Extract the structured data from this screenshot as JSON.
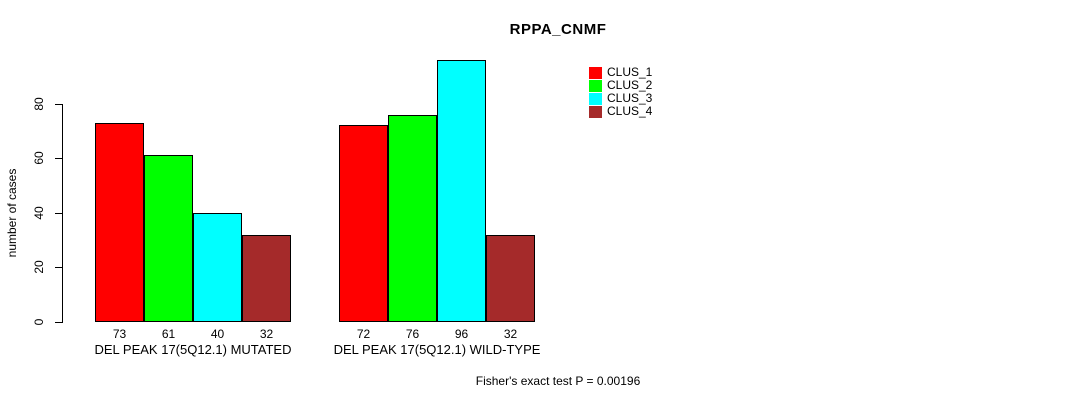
{
  "title": "RPPA_CNMF",
  "y_axis": {
    "label": "number of cases",
    "tick_labels": [
      "0",
      "20",
      "40",
      "60",
      "80"
    ]
  },
  "footer": "Fisher's exact test P = 0.00196",
  "legend": {
    "items": [
      {
        "label": "CLUS_1",
        "color": "#FF0000"
      },
      {
        "label": "CLUS_2",
        "color": "#00FF00"
      },
      {
        "label": "CLUS_3",
        "color": "#00FFFF"
      },
      {
        "label": "CLUS_4",
        "color": "#A52A2A"
      }
    ]
  },
  "chart_data": {
    "type": "bar",
    "title": "RPPA_CNMF",
    "xlabel": "",
    "ylabel": "number of cases",
    "ylim": [
      0,
      97
    ],
    "yticks": [
      0,
      20,
      40,
      60,
      80
    ],
    "grid": false,
    "legend_position": "top-right",
    "categories": [
      "DEL PEAK 17(5Q12.1) MUTATED",
      "DEL PEAK 17(5Q12.1) WILD-TYPE"
    ],
    "series": [
      {
        "name": "CLUS_1",
        "color": "#FF0000",
        "values": [
          73,
          72
        ]
      },
      {
        "name": "CLUS_2",
        "color": "#00FF00",
        "values": [
          61,
          76
        ]
      },
      {
        "name": "CLUS_3",
        "color": "#00FFFF",
        "values": [
          40,
          96
        ]
      },
      {
        "name": "CLUS_4",
        "color": "#A52A2A",
        "values": [
          32,
          32
        ]
      }
    ],
    "bar_value_labels": [
      [
        73,
        61,
        40,
        32
      ],
      [
        72,
        76,
        96,
        32
      ]
    ],
    "annotation": "Fisher's exact test P = 0.00196"
  }
}
